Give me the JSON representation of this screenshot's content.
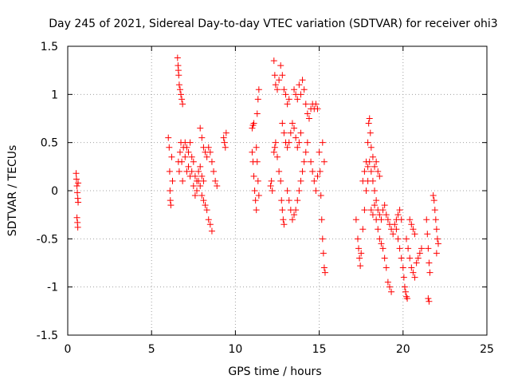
{
  "chart_data": {
    "type": "scatter",
    "title": "Day 245 of 2021, Sidereal Day-to-day VTEC variation (SDTVAR) for receiver ohi3",
    "xlabel": "GPS time / hours",
    "ylabel": "SDTVAR / TECUs",
    "xlim": [
      0,
      25
    ],
    "ylim": [
      -1.5,
      1.5
    ],
    "xticks": [
      0,
      5,
      10,
      15,
      20,
      25
    ],
    "yticks": [
      -1.5,
      -1,
      -0.5,
      0,
      0.5,
      1,
      1.5
    ],
    "xtick_labels": [
      "0",
      "5",
      "10",
      "15",
      "20",
      "25"
    ],
    "ytick_labels": [
      "-1.5",
      "-1",
      "-0.5",
      "0",
      "0.5",
      "1",
      "1.5"
    ],
    "grid": true,
    "marker": "+",
    "series": [
      {
        "name": "SDTVAR",
        "color": "#ff0000",
        "points": [
          [
            0.5,
            0.18
          ],
          [
            0.52,
            0.12
          ],
          [
            0.55,
            0.05
          ],
          [
            0.57,
            -0.02
          ],
          [
            0.6,
            -0.08
          ],
          [
            0.62,
            -0.12
          ],
          [
            0.55,
            -0.28
          ],
          [
            0.58,
            -0.33
          ],
          [
            0.6,
            -0.38
          ],
          [
            0.62,
            0.08
          ],
          [
            6.0,
            0.55
          ],
          [
            6.05,
            0.45
          ],
          [
            6.08,
            0.2
          ],
          [
            6.1,
            0.0
          ],
          [
            6.12,
            -0.1
          ],
          [
            6.15,
            -0.15
          ],
          [
            6.2,
            0.35
          ],
          [
            6.25,
            0.1
          ],
          [
            6.55,
            1.38
          ],
          [
            6.58,
            1.3
          ],
          [
            6.6,
            1.25
          ],
          [
            6.62,
            1.2
          ],
          [
            6.65,
            1.1
          ],
          [
            6.7,
            1.05
          ],
          [
            6.75,
            1.0
          ],
          [
            6.8,
            0.95
          ],
          [
            6.85,
            0.9
          ],
          [
            6.6,
            0.3
          ],
          [
            6.65,
            0.2
          ],
          [
            6.7,
            0.4
          ],
          [
            6.75,
            0.5
          ],
          [
            6.8,
            0.3
          ],
          [
            6.85,
            0.1
          ],
          [
            6.9,
            0.45
          ],
          [
            7.0,
            0.35
          ],
          [
            7.1,
            0.2
          ],
          [
            7.2,
            0.25
          ],
          [
            7.3,
            0.15
          ],
          [
            7.4,
            0.2
          ],
          [
            7.5,
            0.3
          ],
          [
            7.6,
            0.15
          ],
          [
            7.7,
            0.1
          ],
          [
            7.8,
            0.2
          ],
          [
            7.9,
            0.25
          ],
          [
            8.0,
            0.15
          ],
          [
            8.1,
            0.1
          ],
          [
            7.0,
            0.5
          ],
          [
            7.1,
            0.45
          ],
          [
            7.2,
            0.4
          ],
          [
            7.3,
            0.5
          ],
          [
            7.4,
            0.35
          ],
          [
            7.5,
            0.05
          ],
          [
            7.6,
            -0.05
          ],
          [
            7.7,
            0.0
          ],
          [
            7.8,
            0.1
          ],
          [
            7.9,
            0.05
          ],
          [
            8.0,
            -0.05
          ],
          [
            8.1,
            -0.1
          ],
          [
            8.2,
            -0.15
          ],
          [
            8.3,
            -0.2
          ],
          [
            8.4,
            -0.3
          ],
          [
            8.5,
            -0.35
          ],
          [
            8.6,
            -0.42
          ],
          [
            7.9,
            0.65
          ],
          [
            8.0,
            0.55
          ],
          [
            8.1,
            0.45
          ],
          [
            8.2,
            0.4
          ],
          [
            8.3,
            0.35
          ],
          [
            8.4,
            0.45
          ],
          [
            8.5,
            0.4
          ],
          [
            8.6,
            0.3
          ],
          [
            8.7,
            0.2
          ],
          [
            8.8,
            0.1
          ],
          [
            8.9,
            0.05
          ],
          [
            9.3,
            0.55
          ],
          [
            9.35,
            0.5
          ],
          [
            9.4,
            0.45
          ],
          [
            9.45,
            0.6
          ],
          [
            11.0,
            0.4
          ],
          [
            11.05,
            0.3
          ],
          [
            11.1,
            0.15
          ],
          [
            11.15,
            0.0
          ],
          [
            11.2,
            -0.1
          ],
          [
            11.25,
            -0.2
          ],
          [
            11.0,
            0.65
          ],
          [
            11.05,
            0.68
          ],
          [
            11.1,
            0.7
          ],
          [
            11.3,
            0.8
          ],
          [
            11.35,
            0.95
          ],
          [
            11.4,
            1.05
          ],
          [
            11.25,
            0.45
          ],
          [
            11.3,
            0.3
          ],
          [
            11.35,
            0.1
          ],
          [
            11.4,
            -0.05
          ],
          [
            12.1,
            0.05
          ],
          [
            12.15,
            0.1
          ],
          [
            12.2,
            0.0
          ],
          [
            12.3,
            0.4
          ],
          [
            12.35,
            0.45
          ],
          [
            12.4,
            0.5
          ],
          [
            12.5,
            0.35
          ],
          [
            12.6,
            0.2
          ],
          [
            12.7,
            0.1
          ],
          [
            12.75,
            -0.1
          ],
          [
            12.8,
            -0.2
          ],
          [
            12.85,
            -0.3
          ],
          [
            12.9,
            -0.35
          ],
          [
            12.3,
            1.35
          ],
          [
            12.35,
            1.2
          ],
          [
            12.4,
            1.1
          ],
          [
            12.5,
            1.05
          ],
          [
            12.6,
            1.15
          ],
          [
            12.7,
            1.3
          ],
          [
            12.8,
            1.2
          ],
          [
            12.9,
            1.05
          ],
          [
            13.0,
            1.0
          ],
          [
            13.1,
            0.9
          ],
          [
            13.2,
            0.95
          ],
          [
            12.8,
            0.7
          ],
          [
            12.9,
            0.6
          ],
          [
            13.0,
            0.5
          ],
          [
            13.1,
            0.45
          ],
          [
            13.2,
            0.5
          ],
          [
            13.3,
            0.6
          ],
          [
            13.4,
            0.7
          ],
          [
            13.5,
            0.65
          ],
          [
            13.6,
            0.55
          ],
          [
            13.7,
            0.45
          ],
          [
            13.8,
            0.5
          ],
          [
            13.9,
            0.6
          ],
          [
            13.5,
            1.05
          ],
          [
            13.6,
            1.0
          ],
          [
            13.7,
            0.95
          ],
          [
            13.8,
            1.1
          ],
          [
            13.9,
            1.0
          ],
          [
            14.0,
            1.15
          ],
          [
            14.1,
            1.05
          ],
          [
            14.2,
            0.9
          ],
          [
            14.3,
            0.8
          ],
          [
            14.4,
            0.75
          ],
          [
            14.5,
            0.85
          ],
          [
            14.6,
            0.9
          ],
          [
            14.7,
            0.85
          ],
          [
            14.8,
            0.9
          ],
          [
            14.9,
            0.85
          ],
          [
            13.1,
            0.0
          ],
          [
            13.2,
            -0.1
          ],
          [
            13.3,
            -0.2
          ],
          [
            13.4,
            -0.3
          ],
          [
            13.5,
            -0.25
          ],
          [
            13.6,
            -0.2
          ],
          [
            13.7,
            -0.1
          ],
          [
            13.8,
            0.0
          ],
          [
            13.9,
            0.1
          ],
          [
            14.0,
            0.2
          ],
          [
            14.1,
            0.3
          ],
          [
            14.2,
            0.4
          ],
          [
            14.3,
            0.5
          ],
          [
            14.5,
            0.3
          ],
          [
            14.6,
            0.2
          ],
          [
            14.7,
            0.1
          ],
          [
            14.8,
            0.0
          ],
          [
            14.9,
            0.15
          ],
          [
            15.0,
            0.4
          ],
          [
            15.05,
            0.2
          ],
          [
            15.1,
            -0.05
          ],
          [
            15.15,
            -0.3
          ],
          [
            15.2,
            -0.5
          ],
          [
            15.25,
            -0.65
          ],
          [
            15.3,
            -0.8
          ],
          [
            15.35,
            -0.85
          ],
          [
            15.2,
            0.5
          ],
          [
            15.3,
            0.3
          ],
          [
            17.2,
            -0.3
          ],
          [
            17.3,
            -0.5
          ],
          [
            17.35,
            -0.6
          ],
          [
            17.4,
            -0.7
          ],
          [
            17.45,
            -0.78
          ],
          [
            17.5,
            -0.65
          ],
          [
            17.6,
            -0.4
          ],
          [
            17.7,
            -0.2
          ],
          [
            17.8,
            0.0
          ],
          [
            17.9,
            0.1
          ],
          [
            17.6,
            0.1
          ],
          [
            17.7,
            0.2
          ],
          [
            17.8,
            0.3
          ],
          [
            17.9,
            0.25
          ],
          [
            18.0,
            0.3
          ],
          [
            18.1,
            0.2
          ],
          [
            18.2,
            0.1
          ],
          [
            18.3,
            0.0
          ],
          [
            18.4,
            -0.1
          ],
          [
            18.5,
            -0.2
          ],
          [
            18.6,
            -0.25
          ],
          [
            18.7,
            -0.3
          ],
          [
            17.9,
            0.5
          ],
          [
            17.95,
            0.7
          ],
          [
            18.0,
            0.75
          ],
          [
            18.05,
            0.6
          ],
          [
            18.1,
            0.45
          ],
          [
            18.2,
            0.35
          ],
          [
            18.3,
            0.25
          ],
          [
            18.4,
            0.3
          ],
          [
            18.5,
            0.2
          ],
          [
            18.6,
            0.15
          ],
          [
            18.1,
            -0.2
          ],
          [
            18.2,
            -0.25
          ],
          [
            18.3,
            -0.15
          ],
          [
            18.4,
            -0.3
          ],
          [
            18.5,
            -0.4
          ],
          [
            18.6,
            -0.5
          ],
          [
            18.7,
            -0.55
          ],
          [
            18.8,
            -0.6
          ],
          [
            18.9,
            -0.7
          ],
          [
            19.0,
            -0.8
          ],
          [
            19.1,
            -0.95
          ],
          [
            19.2,
            -1.0
          ],
          [
            19.3,
            -1.05
          ],
          [
            18.8,
            -0.2
          ],
          [
            18.9,
            -0.15
          ],
          [
            19.0,
            -0.25
          ],
          [
            19.1,
            -0.3
          ],
          [
            19.2,
            -0.35
          ],
          [
            19.3,
            -0.4
          ],
          [
            19.4,
            -0.45
          ],
          [
            19.5,
            -0.35
          ],
          [
            19.6,
            -0.3
          ],
          [
            19.7,
            -0.25
          ],
          [
            19.8,
            -0.2
          ],
          [
            19.9,
            -0.3
          ],
          [
            19.6,
            -0.4
          ],
          [
            19.7,
            -0.5
          ],
          [
            19.8,
            -0.6
          ],
          [
            19.9,
            -0.7
          ],
          [
            20.0,
            -0.8
          ],
          [
            20.05,
            -0.9
          ],
          [
            20.1,
            -1.0
          ],
          [
            20.15,
            -1.05
          ],
          [
            20.2,
            -1.1
          ],
          [
            20.25,
            -1.12
          ],
          [
            20.2,
            -0.5
          ],
          [
            20.3,
            -0.6
          ],
          [
            20.4,
            -0.7
          ],
          [
            20.5,
            -0.8
          ],
          [
            20.6,
            -0.85
          ],
          [
            20.7,
            -0.9
          ],
          [
            20.8,
            -0.75
          ],
          [
            20.9,
            -0.7
          ],
          [
            21.0,
            -0.65
          ],
          [
            21.1,
            -0.6
          ],
          [
            20.4,
            -0.3
          ],
          [
            20.5,
            -0.35
          ],
          [
            20.6,
            -0.4
          ],
          [
            20.7,
            -0.45
          ],
          [
            21.4,
            -0.3
          ],
          [
            21.45,
            -0.45
          ],
          [
            21.5,
            -0.6
          ],
          [
            21.55,
            -0.75
          ],
          [
            21.6,
            -0.85
          ],
          [
            21.5,
            -1.12
          ],
          [
            21.55,
            -1.15
          ],
          [
            21.8,
            -0.05
          ],
          [
            21.85,
            -0.1
          ],
          [
            21.9,
            -0.2
          ],
          [
            21.95,
            -0.3
          ],
          [
            22.0,
            -0.4
          ],
          [
            22.05,
            -0.5
          ],
          [
            22.1,
            -0.55
          ],
          [
            22.0,
            -0.65
          ]
        ]
      }
    ]
  }
}
